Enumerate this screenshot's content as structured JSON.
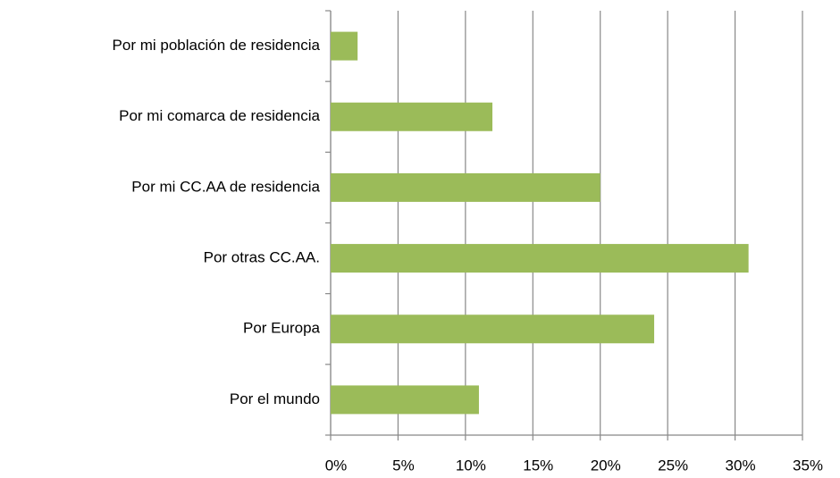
{
  "chart_data": {
    "type": "hbar",
    "categories": [
      "Por mi población de residencia",
      "Por mi comarca de residencia",
      "Por mi CC.AA de residencia",
      "Por otras CC.AA.",
      "Por Europa",
      "Por el mundo"
    ],
    "values": [
      2,
      12,
      20,
      31,
      24,
      11
    ],
    "color": "#9bbb59",
    "xlim": [
      0,
      35
    ],
    "xticks": [
      {
        "value": 0,
        "label": "0%"
      },
      {
        "value": 5,
        "label": "5%"
      },
      {
        "value": 10,
        "label": "10%"
      },
      {
        "value": 15,
        "label": "15%"
      },
      {
        "value": 20,
        "label": "20%"
      },
      {
        "value": 25,
        "label": "25%"
      },
      {
        "value": 30,
        "label": "30%"
      },
      {
        "value": 35,
        "label": "35%"
      }
    ],
    "grid": true
  }
}
